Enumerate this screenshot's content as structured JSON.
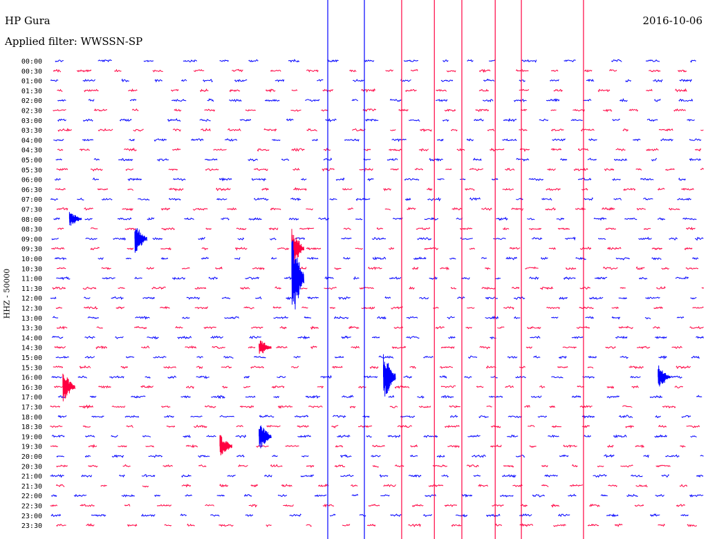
{
  "header": {
    "station": "HP Gura",
    "date": "2016-10-06",
    "filter": "Applied filter: WWSSN-SP"
  },
  "chart_data": {
    "type": "helicorder",
    "title": "HP Gura",
    "date": "2016-10-06",
    "ylabel": "HHZ - 50000",
    "filter": "WWSSN-SP",
    "row_interval_minutes": 30,
    "row_labels": [
      "00:00",
      "00:30",
      "01:00",
      "01:30",
      "02:00",
      "02:30",
      "03:00",
      "03:30",
      "04:00",
      "04:30",
      "05:00",
      "05:30",
      "06:00",
      "06:30",
      "07:00",
      "07:30",
      "08:00",
      "08:30",
      "09:00",
      "09:30",
      "10:00",
      "10:30",
      "11:00",
      "11:30",
      "12:00",
      "12:30",
      "13:00",
      "13:30",
      "14:00",
      "14:30",
      "15:00",
      "15:30",
      "16:00",
      "16:30",
      "17:00",
      "17:30",
      "18:00",
      "18:30",
      "19:00",
      "19:30",
      "20:00",
      "20:30",
      "21:00",
      "21:30",
      "22:00",
      "22:30",
      "23:00",
      "23:30"
    ],
    "colors": [
      "#0000ff",
      "#ff0040"
    ],
    "series_colors_alternate": true,
    "vertical_spikes": [
      {
        "x_fraction": 0.425,
        "color": "#0000ff"
      },
      {
        "x_fraction": 0.481,
        "color": "#0000ff"
      },
      {
        "x_fraction": 0.538,
        "color": "#ff0040"
      },
      {
        "x_fraction": 0.588,
        "color": "#ff0040"
      },
      {
        "x_fraction": 0.63,
        "color": "#ff0040"
      },
      {
        "x_fraction": 0.681,
        "color": "#ff0040"
      },
      {
        "x_fraction": 0.721,
        "color": "#ff0040"
      },
      {
        "x_fraction": 0.816,
        "color": "#ff0040"
      }
    ],
    "events": [
      {
        "row": 16,
        "x_fraction": 0.03,
        "amplitude": 0.8
      },
      {
        "row": 18,
        "x_fraction": 0.13,
        "amplitude": 1.5
      },
      {
        "row": 19,
        "x_fraction": 0.37,
        "amplitude": 2.0
      },
      {
        "row": 22,
        "x_fraction": 0.37,
        "amplitude": 4.5
      },
      {
        "row": 33,
        "x_fraction": 0.02,
        "amplitude": 1.5
      },
      {
        "row": 32,
        "x_fraction": 0.51,
        "amplitude": 2.5
      },
      {
        "row": 38,
        "x_fraction": 0.32,
        "amplitude": 1.5
      },
      {
        "row": 39,
        "x_fraction": 0.26,
        "amplitude": 1.2
      },
      {
        "row": 29,
        "x_fraction": 0.32,
        "amplitude": 0.9
      },
      {
        "row": 32,
        "x_fraction": 0.93,
        "amplitude": 1.3
      }
    ]
  }
}
